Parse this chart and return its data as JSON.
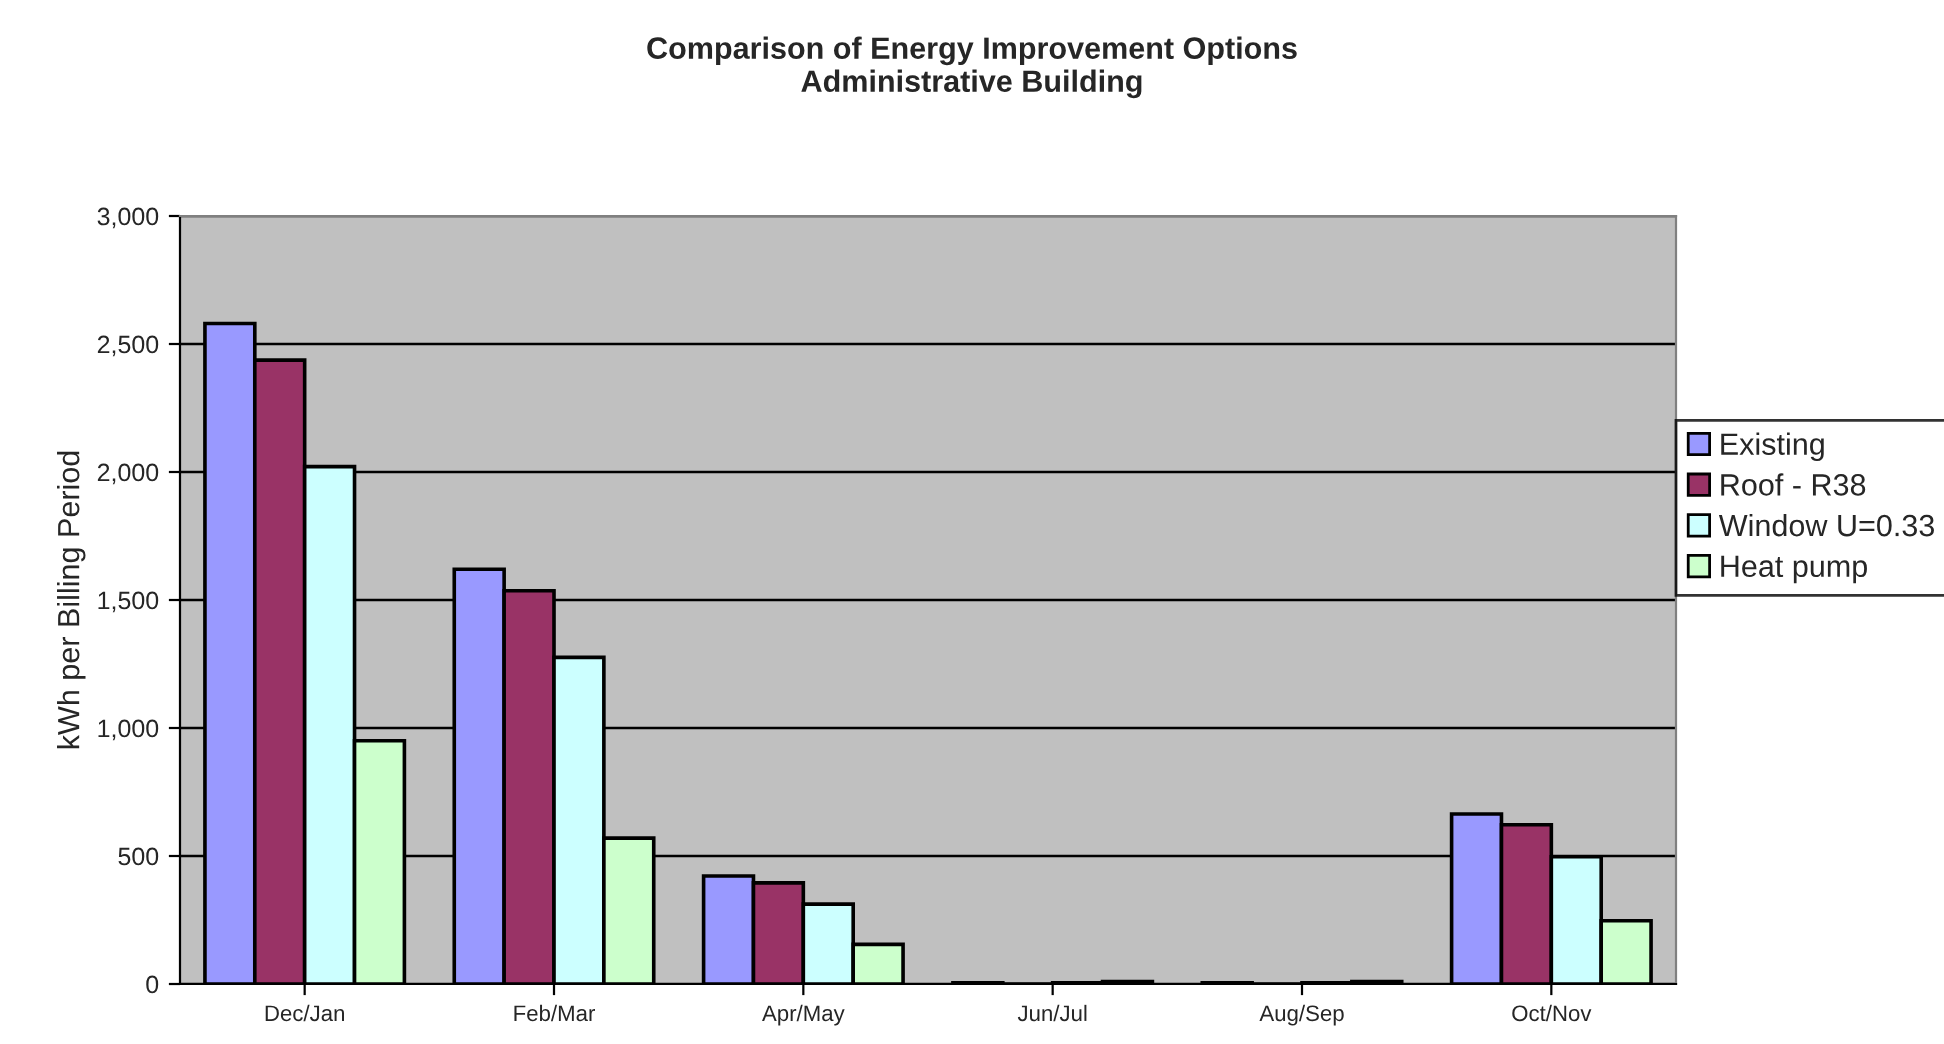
{
  "chart_data": {
    "type": "bar",
    "title": "Comparison of Energy Improvement Options\nAdministrative Building",
    "ylabel": "kWh per Billing Period",
    "categories": [
      "Dec/Jan",
      "Feb/Mar",
      "Apr/May",
      "Jun/Jul",
      "Aug/Sep",
      "Oct/Nov"
    ],
    "series": [
      {
        "name": "Existing",
        "color": "#9999ff",
        "values": [
          2580,
          1620,
          422,
          5,
          5,
          664
        ]
      },
      {
        "name": "Roof - R38",
        "color": "#993366",
        "values": [
          2437,
          1536,
          395,
          null,
          null,
          622
        ]
      },
      {
        "name": "Window U=0.33",
        "color": "#ccffff",
        "values": [
          2021,
          1276,
          312,
          5,
          5,
          497
        ]
      },
      {
        "name": "Heat pump",
        "color": "#ccffcc",
        "values": [
          950,
          570,
          155,
          10,
          10,
          247
        ]
      }
    ],
    "ylim": [
      0,
      3000
    ],
    "yticks": [
      {
        "value": 0,
        "label": "0"
      },
      {
        "value": 500,
        "label": "500"
      },
      {
        "value": 1000,
        "label": "1,000"
      },
      {
        "value": 1500,
        "label": "1,500"
      },
      {
        "value": 2000,
        "label": "2,000"
      },
      {
        "value": 2500,
        "label": "2,500"
      },
      {
        "value": 3000,
        "label": "3,000"
      }
    ],
    "grid": "y",
    "legend": "right"
  }
}
